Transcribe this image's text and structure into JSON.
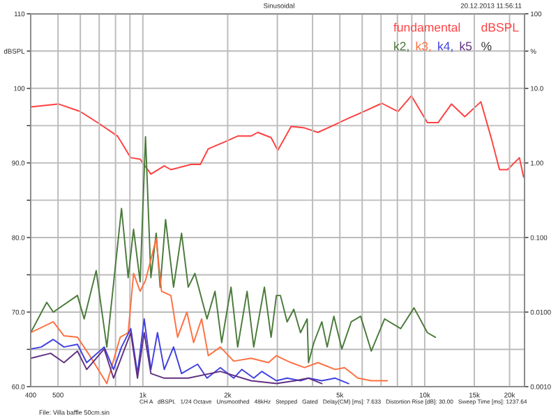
{
  "chart_data": {
    "type": "line",
    "title": "Sinusoidal",
    "subtitle": "20.12.2013 11:56:11",
    "annotations": [
      "dBSPL",
      "%",
      "CH A   dBSPL   1/24 Octave   Unsmoothed   48kHz   Stepped   Gated   Delay(CM) [ms]: 7.633   Distortion Rise [dB]: 30.00   Sweep Time [ms]: 1237.64",
      "File: Villa baffle 50cm.sin"
    ],
    "log": "xy",
    "grid": true,
    "legend": "top right",
    "xlim": [
      400,
      22600
    ],
    "xticks": [
      400,
      500,
      {
        "value": 600,
        "label": null
      },
      {
        "value": 700,
        "label": null
      },
      {
        "value": 800,
        "label": null
      },
      {
        "value": 900,
        "label": null
      },
      {
        "value": 1000,
        "label": "1k"
      },
      {
        "value": 2000,
        "label": "2k"
      },
      {
        "value": 3000,
        "label": null
      },
      {
        "value": 4000,
        "label": null
      },
      {
        "value": 5000,
        "label": "5k"
      },
      {
        "value": 6000,
        "label": null
      },
      {
        "value": 7000,
        "label": null
      },
      {
        "value": 8000,
        "label": null
      },
      {
        "value": 9000,
        "label": null
      },
      {
        "value": 10000,
        "label": "10k"
      },
      {
        "value": 15000,
        "label": "15k"
      },
      {
        "value": 20000,
        "label": "20k"
      }
    ],
    "y2lim": [
      60,
      110
    ],
    "y2ticks": [
      110,
      {
        "value": 105,
        "label": "dBSPL"
      },
      100,
      {
        "value": 95,
        "label": null
      },
      {
        "value": 90,
        "label": "90.0"
      },
      {
        "value": 85,
        "label": null
      },
      {
        "value": 80,
        "label": "80.0"
      },
      {
        "value": 75,
        "label": null
      },
      {
        "value": 70,
        "label": "70.0"
      },
      {
        "value": 65,
        "label": null
      },
      {
        "value": 60,
        "label": "60.0"
      }
    ],
    "ylim": [
      0.001,
      100
    ],
    "yticks": [
      100,
      {
        "value": 31.6,
        "label": "%"
      },
      {
        "value": 10,
        "label": "10.0"
      },
      {
        "value": 1,
        "label": "1.00"
      },
      {
        "value": 0.1,
        "label": "0.100"
      },
      {
        "value": 0.01,
        "label": "0.0100"
      },
      {
        "value": 0.001,
        "label": "0.0010"
      }
    ],
    "series": [
      {
        "name": "fundamental",
        "color": "#ff4040",
        "axis": "y2",
        "x": [
          400,
          503,
          599,
          705,
          813,
          906,
          978,
          1068,
          1191,
          1257,
          1481,
          1599,
          1707,
          1946,
          2170,
          2421,
          2556,
          2851,
          3011,
          3358,
          3746,
          4178,
          4659,
          5370,
          5923,
          7047,
          8035,
          8966,
          10220,
          11150,
          12440,
          13870,
          15820,
          17260,
          18420,
          19670,
          21680,
          22430
        ],
        "values": [
          97.5,
          97.9,
          96.9,
          95.2,
          93.6,
          90.7,
          90.5,
          88.5,
          89.6,
          89.1,
          89.8,
          89.8,
          91.9,
          92.8,
          93.6,
          93.6,
          94.1,
          93.4,
          91.7,
          94.9,
          94.7,
          94.1,
          94.9,
          96.0,
          96.7,
          98.0,
          96.9,
          99.0,
          95.4,
          95.4,
          97.9,
          96.2,
          98.2,
          93.2,
          89.1,
          89.1,
          90.7,
          88.1
        ]
      },
      {
        "name": "k2,",
        "color": "#4a7a3a",
        "x": [
          400,
          456,
          481,
          586,
          619,
          683,
          745,
          840,
          887,
          927,
          978,
          1022,
          1068,
          1115,
          1152,
          1204,
          1285,
          1372,
          1449,
          1530,
          1689,
          1803,
          1904,
          2055,
          2170,
          2343,
          2474,
          2699,
          2851,
          2977,
          3077,
          3250,
          3432,
          3625,
          3828,
          3870,
          4044,
          4316,
          4508,
          4761,
          5082,
          5485,
          5923,
          6465,
          7205,
          8216,
          9165,
          10220,
          10910
        ],
        "values": [
          0.0053,
          0.0135,
          0.01,
          0.0167,
          0.0081,
          0.036,
          0.0034,
          0.245,
          0.029,
          0.129,
          0.0255,
          2.25,
          0.029,
          0.114,
          0.0216,
          0.174,
          0.0216,
          0.114,
          0.0216,
          0.033,
          0.0081,
          0.019,
          0.0039,
          0.0216,
          0.0034,
          0.019,
          0.0034,
          0.0216,
          0.0046,
          0.0167,
          0.0167,
          0.0074,
          0.0109,
          0.0053,
          0.0081,
          0.0021,
          0.0039,
          0.0074,
          0.0034,
          0.0088,
          0.0032,
          0.0074,
          0.0088,
          0.003,
          0.0081,
          0.006,
          0.0114,
          0.0053,
          0.0046
        ]
      },
      {
        "name": "k3,",
        "color": "#ff7040",
        "x": [
          400,
          481,
          525,
          586,
          640,
          745,
          831,
          887,
          927,
          978,
          1022,
          1115,
          1165,
          1257,
          1328,
          1433,
          1514,
          1616,
          1707,
          1883,
          2100,
          2421,
          2790,
          2977,
          3110,
          3358,
          3746,
          4178,
          4815,
          5195,
          5795,
          6465,
          7365
        ],
        "values": [
          0.0053,
          0.0074,
          0.0048,
          0.0046,
          0.0028,
          0.0011,
          0.0046,
          0.0053,
          0.033,
          0.019,
          0.0266,
          0.096,
          0.019,
          0.0167,
          0.0046,
          0.01,
          0.0039,
          0.0081,
          0.0026,
          0.0034,
          0.0022,
          0.0024,
          0.0021,
          0.0026,
          0.0024,
          0.0021,
          0.0018,
          0.0021,
          0.0017,
          0.0018,
          0.0013,
          0.0012,
          0.0012
        ]
      },
      {
        "name": "k4,",
        "color": "#4040e0",
        "x": [
          400,
          436,
          481,
          525,
          586,
          632,
          729,
          787,
          840,
          906,
          957,
          1011,
          1068,
          1127,
          1191,
          1285,
          1372,
          1564,
          1689,
          1883,
          2100,
          2243,
          2474,
          2641,
          2977,
          3250,
          3625,
          3870,
          4316,
          4815,
          5370
        ],
        "values": [
          0.0032,
          0.0034,
          0.0043,
          0.0034,
          0.0037,
          0.0021,
          0.0034,
          0.0017,
          0.0034,
          0.006,
          0.0015,
          0.0081,
          0.0017,
          0.0053,
          0.0017,
          0.0034,
          0.0015,
          0.002,
          0.0013,
          0.0018,
          0.0013,
          0.0017,
          0.0013,
          0.0016,
          0.0012,
          0.0013,
          0.0012,
          0.0013,
          0.0012,
          0.0013,
          0.0011
        ]
      },
      {
        "name": "k5",
        "color": "#603080",
        "x": [
          400,
          471,
          525,
          586,
          632,
          729,
          787,
          906,
          957,
          1011,
          1068,
          1191,
          1449,
          1883,
          2421,
          2977,
          3467,
          3870,
          4316
        ],
        "values": [
          0.0024,
          0.0028,
          0.0021,
          0.003,
          0.0017,
          0.0032,
          0.0013,
          0.0053,
          0.0013,
          0.0053,
          0.0015,
          0.0013,
          0.0013,
          0.0016,
          0.0012,
          0.0011,
          0.0012,
          0.0013,
          0.0011
        ]
      }
    ]
  }
}
